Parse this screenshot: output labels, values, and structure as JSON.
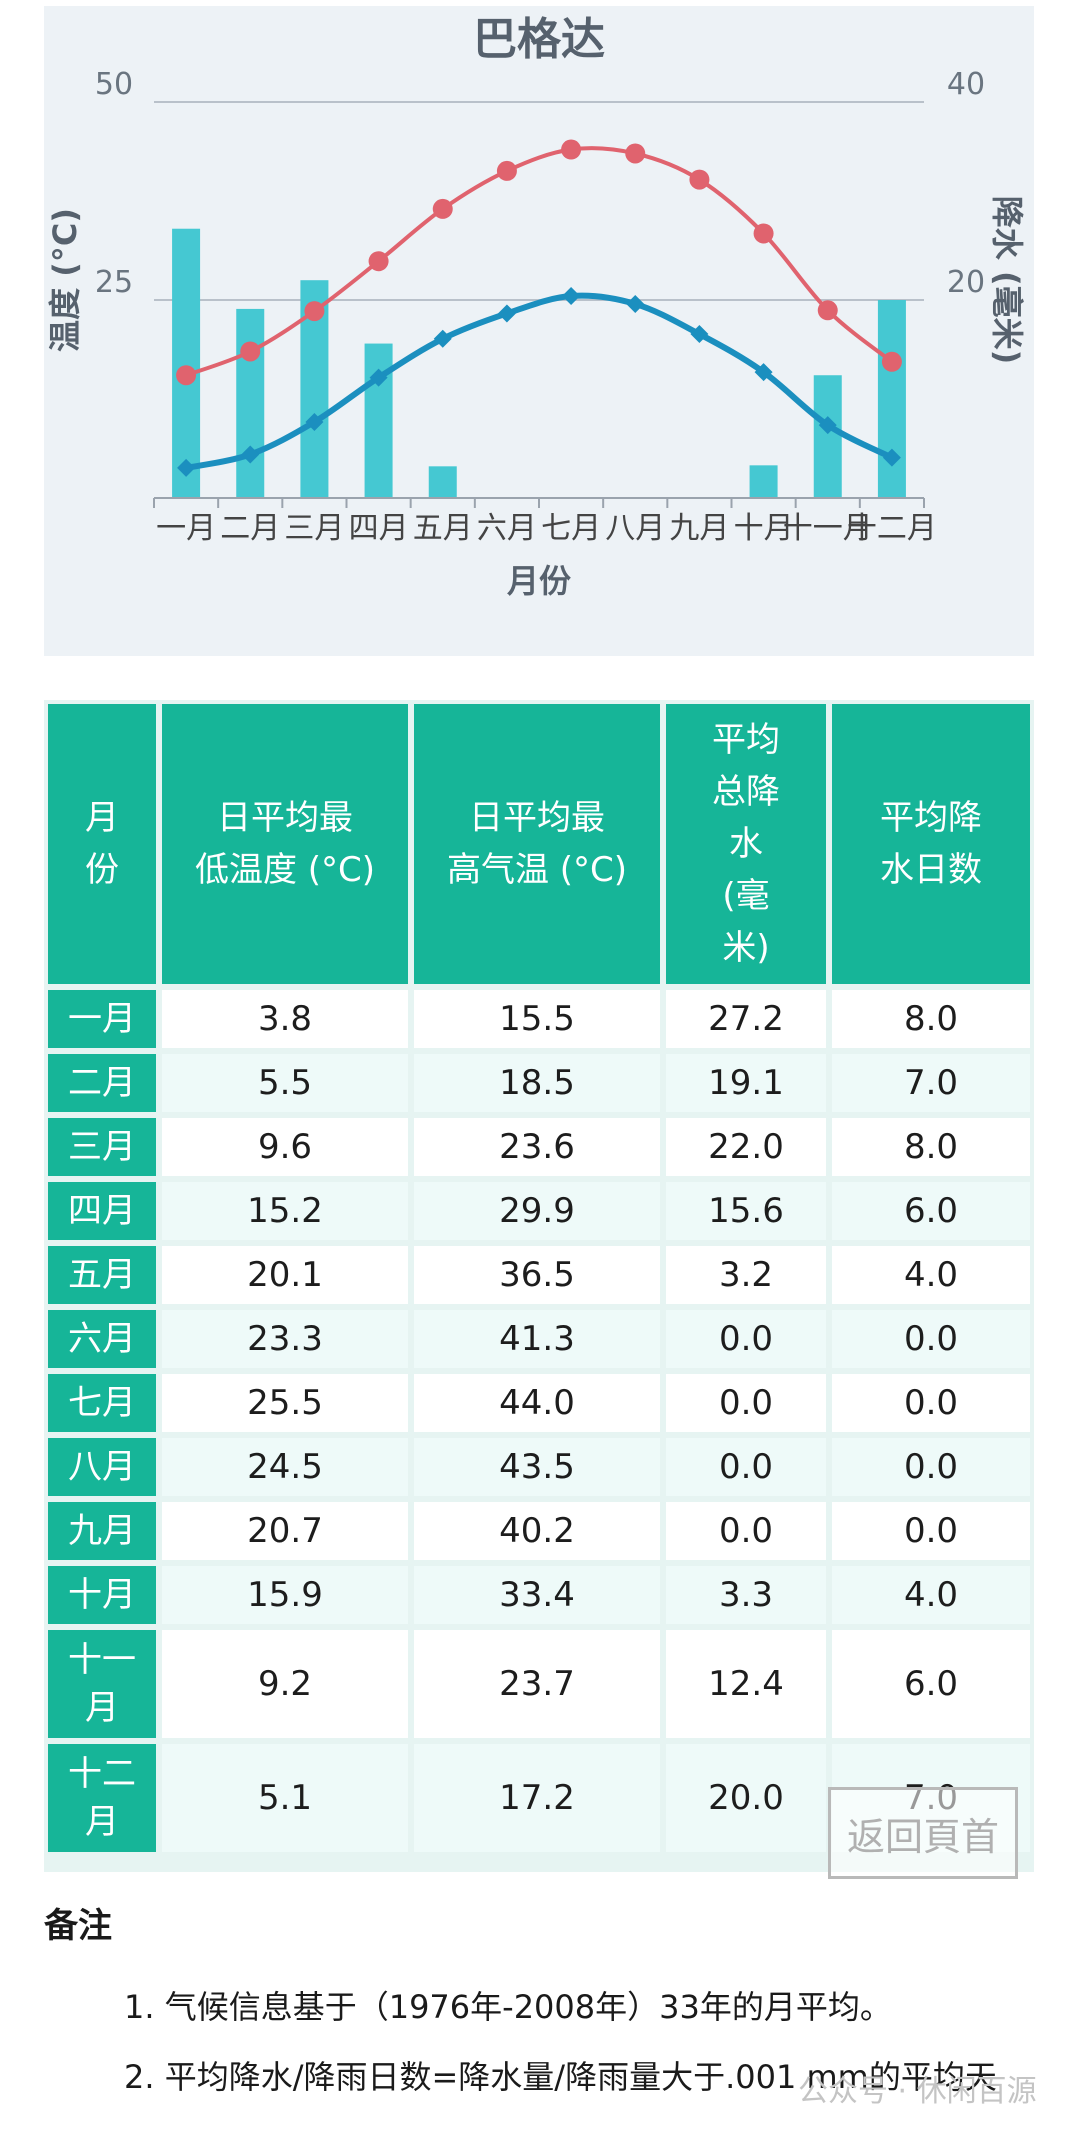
{
  "chart_data": {
    "type": "line",
    "title": "巴格达",
    "xlabel": "月份",
    "ylabel_left": "温度 (°C)",
    "ylabel_right": "降水 (毫米)",
    "categories": [
      "一月",
      "二月",
      "三月",
      "四月",
      "五月",
      "六月",
      "七月",
      "八月",
      "九月",
      "十月",
      "十一月",
      "十二月"
    ],
    "left_axis": {
      "range": [
        0,
        50
      ],
      "ticks": [
        "25",
        "50"
      ]
    },
    "right_axis": {
      "range": [
        0,
        40
      ],
      "ticks": [
        "20",
        "40"
      ]
    },
    "grid": true,
    "series": [
      {
        "kind": "bar",
        "axis": "right",
        "color": "#45c8d2",
        "values": [
          27.2,
          19.1,
          22.0,
          15.6,
          3.2,
          0.0,
          0.0,
          0.0,
          0.0,
          3.3,
          12.4,
          20.0
        ]
      },
      {
        "kind": "line",
        "axis": "left",
        "color": "#e0636e",
        "marker": "circle",
        "values": [
          15.5,
          18.5,
          23.6,
          29.9,
          36.5,
          41.3,
          44.0,
          43.5,
          40.2,
          33.4,
          23.7,
          17.2
        ]
      },
      {
        "kind": "line",
        "axis": "left",
        "color": "#1b8fbf",
        "marker": "diamond",
        "values": [
          3.8,
          5.5,
          9.6,
          15.2,
          20.1,
          23.3,
          25.5,
          24.5,
          20.7,
          15.9,
          9.2,
          5.1
        ]
      }
    ]
  },
  "table": {
    "headers": [
      "月\n份",
      "日平均最\n低温度 (°C)",
      "日平均最\n高气温 (°C)",
      "平均\n总降\n水\n(毫\n米)",
      "平均降\n水日数"
    ],
    "rows": [
      [
        "一月",
        "3.8",
        "15.5",
        "27.2",
        "8.0"
      ],
      [
        "二月",
        "5.5",
        "18.5",
        "19.1",
        "7.0"
      ],
      [
        "三月",
        "9.6",
        "23.6",
        "22.0",
        "8.0"
      ],
      [
        "四月",
        "15.2",
        "29.9",
        "15.6",
        "6.0"
      ],
      [
        "五月",
        "20.1",
        "36.5",
        "3.2",
        "4.0"
      ],
      [
        "六月",
        "23.3",
        "41.3",
        "0.0",
        "0.0"
      ],
      [
        "七月",
        "25.5",
        "44.0",
        "0.0",
        "0.0"
      ],
      [
        "八月",
        "24.5",
        "43.5",
        "0.0",
        "0.0"
      ],
      [
        "九月",
        "20.7",
        "40.2",
        "0.0",
        "0.0"
      ],
      [
        "十月",
        "15.9",
        "33.4",
        "3.3",
        "4.0"
      ],
      [
        "十一\n月",
        "9.2",
        "23.7",
        "12.4",
        "6.0"
      ],
      [
        "十二\n月",
        "5.1",
        "17.2",
        "20.0",
        "7.0"
      ]
    ]
  },
  "notes": {
    "title": "备注",
    "items": [
      "1. 气候信息基于（1976年-2008年）33年的月平均。",
      "2. 平均降水/降雨日数=降水量/降雨量大于.001 mm的平均天"
    ]
  },
  "back_to_top": "返回頁首",
  "watermark": "公众号 · 休闲百源"
}
